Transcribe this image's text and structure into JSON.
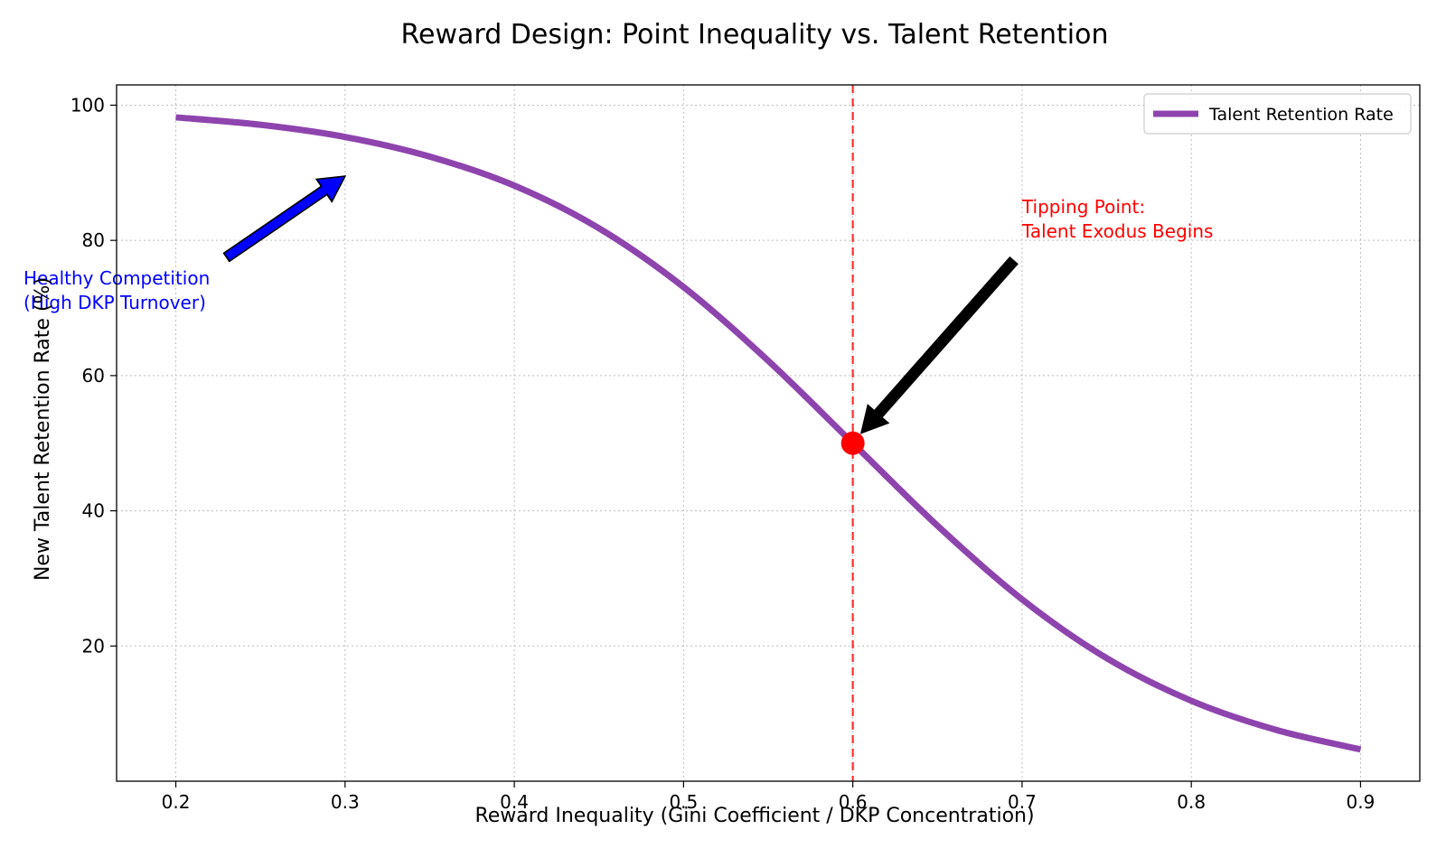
{
  "chart_data": {
    "type": "line",
    "title": "Reward Design: Point Inequality vs. Talent Retention",
    "xlabel": "Reward Inequality (Gini Coefficient / DKP Concentration)",
    "ylabel": "New Talent Retention Rate (%)",
    "xlim": [
      0.165,
      0.935
    ],
    "ylim": [
      0,
      103
    ],
    "xticks": [
      0.2,
      0.3,
      0.4,
      0.5,
      0.6,
      0.7,
      0.8,
      0.9
    ],
    "xtick_labels": [
      "0.2",
      "0.3",
      "0.4",
      "0.5",
      "0.6",
      "0.7",
      "0.8",
      "0.9"
    ],
    "yticks": [
      20,
      40,
      60,
      80,
      100
    ],
    "ytick_labels": [
      "20",
      "40",
      "60",
      "80",
      "100"
    ],
    "grid": true,
    "legend_position": "top-right",
    "colors": {
      "line": "#8e44ad",
      "tipping_marker": "#ff0000",
      "threshold_line": "#ff0000",
      "healthy_annotation": "#0000ff",
      "tipping_annotation": "#ff0000",
      "tipping_arrow": "#000000"
    },
    "series": [
      {
        "name": "Talent Retention Rate",
        "x": [
          0.2,
          0.25,
          0.3,
          0.35,
          0.4,
          0.45,
          0.5,
          0.55,
          0.6,
          0.65,
          0.7,
          0.75,
          0.8,
          0.85,
          0.9
        ],
        "y": [
          98.2,
          97.1,
          95.3,
          92.4,
          88.1,
          81.8,
          73.1,
          62.2,
          50.0,
          37.8,
          26.9,
          18.2,
          11.9,
          7.6,
          4.7
        ]
      }
    ],
    "threshold": {
      "x": 0.6
    },
    "tipping_point": {
      "x": 0.6,
      "y": 50.0
    },
    "annotations": [
      {
        "id": "healthy",
        "lines": [
          "Healthy Competition",
          "(High DKP Turnover)"
        ],
        "text_at": [
          0.11,
          73.5
        ],
        "arrow_from": [
          0.23,
          77.5
        ],
        "arrow_to": [
          0.3,
          89.5
        ]
      },
      {
        "id": "tipping",
        "lines": [
          "Tipping Point:",
          "Talent Exodus Begins"
        ],
        "text_at": [
          0.7,
          84.0
        ],
        "arrow_from": [
          0.695,
          77.0
        ],
        "arrow_to": [
          0.605,
          51.5
        ]
      }
    ]
  }
}
